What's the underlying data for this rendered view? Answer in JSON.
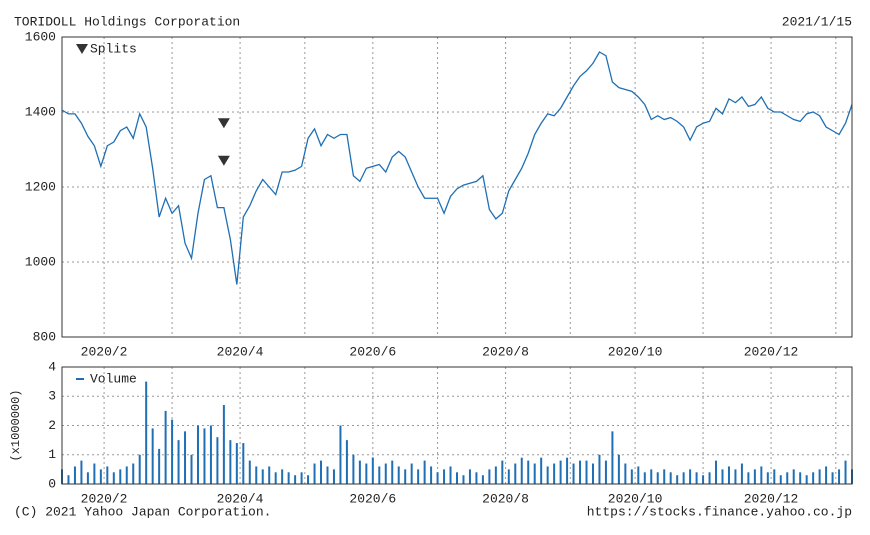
{
  "header": {
    "title": "TORIDOLL Holdings Corporation",
    "date": "2021/1/15"
  },
  "footer": {
    "copyright": "(C) 2021 Yahoo Japan Corporation.",
    "url": "https://stocks.finance.yahoo.co.jp"
  },
  "chart_data": [
    {
      "type": "line",
      "color": "#1f6fb5",
      "series": [
        {
          "name": "Splits",
          "color": "#333333",
          "marker": "triangle-down",
          "x": [
            50,
            50
          ],
          "values": [
            1370,
            1270
          ]
        }
      ],
      "x": [
        0,
        2,
        4,
        6,
        8,
        10,
        12,
        14,
        16,
        18,
        20,
        22,
        24,
        26,
        28,
        30,
        32,
        34,
        36,
        38,
        40,
        42,
        44,
        46,
        48,
        50,
        52,
        54,
        56,
        58,
        60,
        62,
        64,
        66,
        68,
        70,
        72,
        74,
        76,
        78,
        80,
        82,
        84,
        86,
        88,
        90,
        92,
        94,
        96,
        98,
        100,
        102,
        104,
        106,
        108,
        110,
        112,
        114,
        116,
        118,
        120,
        122,
        124,
        126,
        128,
        130,
        132,
        134,
        136,
        138,
        140,
        142,
        144,
        146,
        148,
        150,
        152,
        154,
        156,
        158,
        160,
        162,
        164,
        166,
        168,
        170,
        172,
        174,
        176,
        178,
        180,
        182,
        184,
        186,
        188,
        190,
        192,
        194,
        196,
        198,
        200,
        202,
        204,
        206,
        208,
        210,
        212,
        214,
        216,
        218,
        220,
        222,
        224,
        226,
        228,
        230,
        232,
        234,
        236,
        238,
        240,
        242,
        244
      ],
      "values": [
        1405,
        1395,
        1395,
        1370,
        1335,
        1310,
        1255,
        1310,
        1320,
        1350,
        1360,
        1330,
        1395,
        1360,
        1250,
        1120,
        1170,
        1130,
        1150,
        1050,
        1010,
        1130,
        1220,
        1230,
        1145,
        1145,
        1060,
        940,
        1120,
        1150,
        1190,
        1220,
        1200,
        1180,
        1240,
        1240,
        1245,
        1255,
        1330,
        1355,
        1310,
        1340,
        1330,
        1340,
        1340,
        1230,
        1215,
        1250,
        1255,
        1260,
        1240,
        1280,
        1295,
        1280,
        1240,
        1200,
        1170,
        1170,
        1170,
        1130,
        1175,
        1195,
        1205,
        1210,
        1215,
        1230,
        1140,
        1115,
        1130,
        1190,
        1220,
        1250,
        1290,
        1340,
        1370,
        1395,
        1390,
        1410,
        1440,
        1470,
        1495,
        1510,
        1530,
        1560,
        1550,
        1480,
        1465,
        1460,
        1455,
        1440,
        1420,
        1380,
        1390,
        1380,
        1385,
        1375,
        1360,
        1325,
        1360,
        1370,
        1375,
        1410,
        1395,
        1435,
        1425,
        1440,
        1415,
        1420,
        1440,
        1410,
        1400,
        1400,
        1390,
        1380,
        1375,
        1395,
        1400,
        1390,
        1360,
        1350,
        1340,
        1370,
        1420
      ],
      "xlim": [
        0,
        244
      ],
      "ylim": [
        800,
        1600
      ],
      "yticks": [
        800,
        1000,
        1200,
        1400,
        1600
      ],
      "xticks": [
        {
          "value": 13,
          "label": "2020/2"
        },
        {
          "value": 55,
          "label": "2020/4"
        },
        {
          "value": 96,
          "label": "2020/6"
        },
        {
          "value": 137,
          "label": "2020/8"
        },
        {
          "value": 177,
          "label": "2020/10"
        },
        {
          "value": 219,
          "label": "2020/12"
        }
      ],
      "xminor": [
        34,
        75,
        116,
        157,
        198,
        239
      ],
      "grid": true,
      "legend": "upper left"
    },
    {
      "type": "bar",
      "color": "#1f6fb5",
      "name": "Volume",
      "ylabel": "(x1000000)",
      "x": [
        0,
        2,
        4,
        6,
        8,
        10,
        12,
        14,
        16,
        18,
        20,
        22,
        24,
        26,
        28,
        30,
        32,
        34,
        36,
        38,
        40,
        42,
        44,
        46,
        48,
        50,
        52,
        54,
        56,
        58,
        60,
        62,
        64,
        66,
        68,
        70,
        72,
        74,
        76,
        78,
        80,
        82,
        84,
        86,
        88,
        90,
        92,
        94,
        96,
        98,
        100,
        102,
        104,
        106,
        108,
        110,
        112,
        114,
        116,
        118,
        120,
        122,
        124,
        126,
        128,
        130,
        132,
        134,
        136,
        138,
        140,
        142,
        144,
        146,
        148,
        150,
        152,
        154,
        156,
        158,
        160,
        162,
        164,
        166,
        168,
        170,
        172,
        174,
        176,
        178,
        180,
        182,
        184,
        186,
        188,
        190,
        192,
        194,
        196,
        198,
        200,
        202,
        204,
        206,
        208,
        210,
        212,
        214,
        216,
        218,
        220,
        222,
        224,
        226,
        228,
        230,
        232,
        234,
        236,
        238,
        240,
        242,
        244
      ],
      "values": [
        0.5,
        0.3,
        0.6,
        0.8,
        0.4,
        0.7,
        0.5,
        0.6,
        0.4,
        0.5,
        0.6,
        0.7,
        1.0,
        3.5,
        1.9,
        1.2,
        2.5,
        2.2,
        1.5,
        1.8,
        1.0,
        2.0,
        1.9,
        2.0,
        1.6,
        2.7,
        1.5,
        1.4,
        1.4,
        0.8,
        0.6,
        0.5,
        0.6,
        0.4,
        0.5,
        0.4,
        0.3,
        0.4,
        0.3,
        0.7,
        0.8,
        0.6,
        0.5,
        2.0,
        1.5,
        1.0,
        0.8,
        0.7,
        0.9,
        0.6,
        0.7,
        0.8,
        0.6,
        0.5,
        0.7,
        0.5,
        0.8,
        0.6,
        0.4,
        0.5,
        0.6,
        0.4,
        0.3,
        0.5,
        0.4,
        0.3,
        0.5,
        0.6,
        0.8,
        0.5,
        0.7,
        0.9,
        0.8,
        0.7,
        0.9,
        0.6,
        0.7,
        0.8,
        0.9,
        0.7,
        0.8,
        0.8,
        0.7,
        1.0,
        0.8,
        1.8,
        1.0,
        0.7,
        0.5,
        0.6,
        0.4,
        0.5,
        0.4,
        0.5,
        0.4,
        0.3,
        0.4,
        0.5,
        0.4,
        0.3,
        0.4,
        0.8,
        0.5,
        0.6,
        0.5,
        0.7,
        0.4,
        0.5,
        0.6,
        0.4,
        0.5,
        0.3,
        0.4,
        0.5,
        0.4,
        0.3,
        0.4,
        0.5,
        0.6,
        0.4,
        0.5,
        0.8,
        0.5
      ],
      "xlim": [
        0,
        244
      ],
      "ylim": [
        0,
        4
      ],
      "yticks": [
        0,
        1,
        2,
        3,
        4
      ],
      "xticks": [
        {
          "value": 13,
          "label": "2020/2"
        },
        {
          "value": 55,
          "label": "2020/4"
        },
        {
          "value": 96,
          "label": "2020/6"
        },
        {
          "value": 137,
          "label": "2020/8"
        },
        {
          "value": 177,
          "label": "2020/10"
        },
        {
          "value": 219,
          "label": "2020/12"
        }
      ],
      "xminor": [
        34,
        75,
        116,
        157,
        198,
        239
      ],
      "grid": true,
      "legend": "upper left"
    }
  ]
}
